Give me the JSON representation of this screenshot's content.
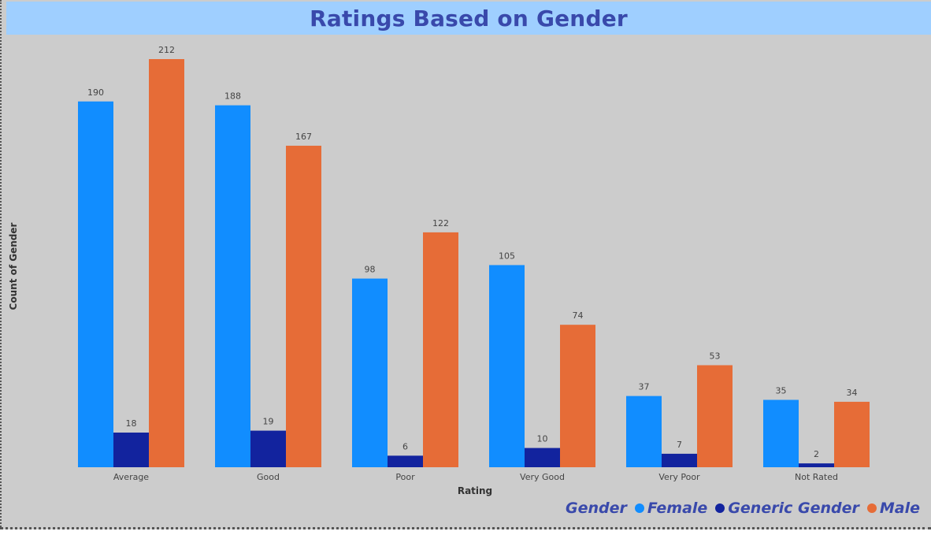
{
  "title": "Ratings Based on Gender",
  "legend_title": "Gender",
  "colors": {
    "title_text": "#3949ab",
    "title_bg": "#9fcfff",
    "plot_bg": "#cccccc",
    "axis_text": "#333333",
    "value_label_text": "#444444"
  },
  "chart_data": {
    "type": "bar",
    "title": "Ratings Based on Gender",
    "xlabel": "Rating",
    "ylabel": "Count of Gender",
    "categories": [
      "Average",
      "Good",
      "Poor",
      "Very Good",
      "Very Poor",
      "Not Rated"
    ],
    "series": [
      {
        "name": "Female",
        "color": "#118dff",
        "values": [
          190,
          188,
          98,
          105,
          37,
          35
        ]
      },
      {
        "name": "Generic Gender",
        "color": "#12239e",
        "values": [
          18,
          19,
          6,
          10,
          7,
          2
        ]
      },
      {
        "name": "Male",
        "color": "#e66c37",
        "values": [
          212,
          167,
          122,
          74,
          53,
          34
        ]
      }
    ],
    "ylim": [
      0,
      212
    ],
    "grid": false,
    "data_labels": true,
    "legend_position": "bottom-right"
  }
}
